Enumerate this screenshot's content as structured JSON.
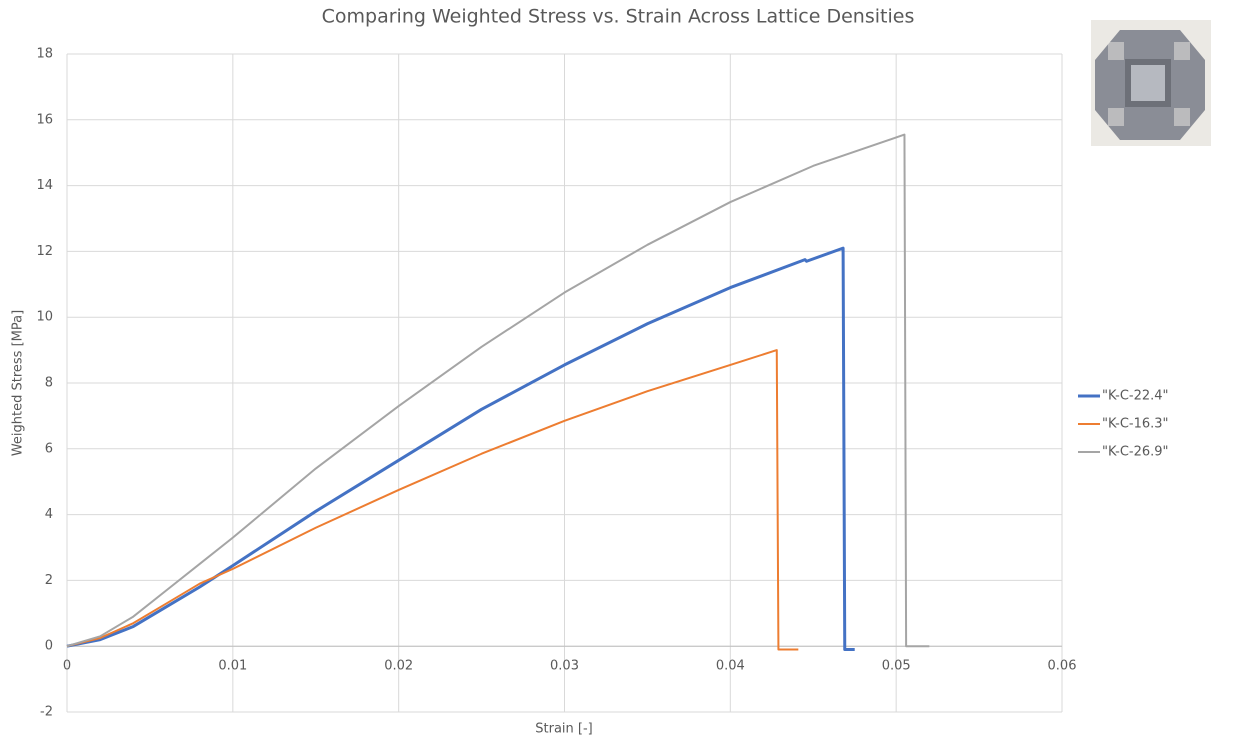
{
  "chart_data": {
    "type": "line",
    "title": "Comparing Weighted Stress vs. Strain Across Lattice Densities",
    "x_label": "Strain [-]",
    "y_label": "Weighted Stress [MPa]",
    "xlim": [
      0,
      0.06
    ],
    "xticks": [
      0,
      0.01,
      0.02,
      0.03,
      0.04,
      0.05,
      0.06
    ],
    "ylim": [
      -2,
      18
    ],
    "yticks": [
      -2,
      0,
      2,
      4,
      6,
      8,
      10,
      12,
      14,
      16,
      18
    ],
    "grid": true,
    "legend": "right",
    "series": [
      {
        "name": "\"K-C-22.4\"",
        "color": "#4472c4",
        "x": [
          0,
          0.002,
          0.004,
          0.006,
          0.008,
          0.01,
          0.015,
          0.02,
          0.025,
          0.03,
          0.035,
          0.04,
          0.0445,
          0.0446,
          0.0468,
          0.0469,
          0.0475
        ],
        "values": [
          0,
          0.2,
          0.6,
          1.2,
          1.8,
          2.45,
          4.1,
          5.65,
          7.2,
          8.55,
          9.8,
          10.9,
          11.75,
          11.7,
          12.1,
          -0.1,
          -0.1
        ]
      },
      {
        "name": "\"K-C-16.3\"",
        "color": "#ed7d31",
        "x": [
          0,
          0.002,
          0.004,
          0.006,
          0.008,
          0.01,
          0.015,
          0.02,
          0.025,
          0.03,
          0.035,
          0.04,
          0.0428,
          0.0429,
          0.0441
        ],
        "values": [
          0,
          0.25,
          0.7,
          1.3,
          1.9,
          2.35,
          3.6,
          4.75,
          5.85,
          6.85,
          7.75,
          8.55,
          9.0,
          -0.1,
          -0.1
        ]
      },
      {
        "name": "\"K-C-26.9\"",
        "color": "#a5a5a5",
        "x": [
          0,
          0.002,
          0.004,
          0.006,
          0.008,
          0.01,
          0.015,
          0.02,
          0.025,
          0.03,
          0.035,
          0.04,
          0.045,
          0.0505,
          0.0506,
          0.052
        ],
        "values": [
          0,
          0.3,
          0.9,
          1.7,
          2.5,
          3.3,
          5.4,
          7.3,
          9.1,
          10.75,
          12.2,
          13.5,
          14.6,
          15.55,
          0,
          0
        ]
      }
    ]
  }
}
